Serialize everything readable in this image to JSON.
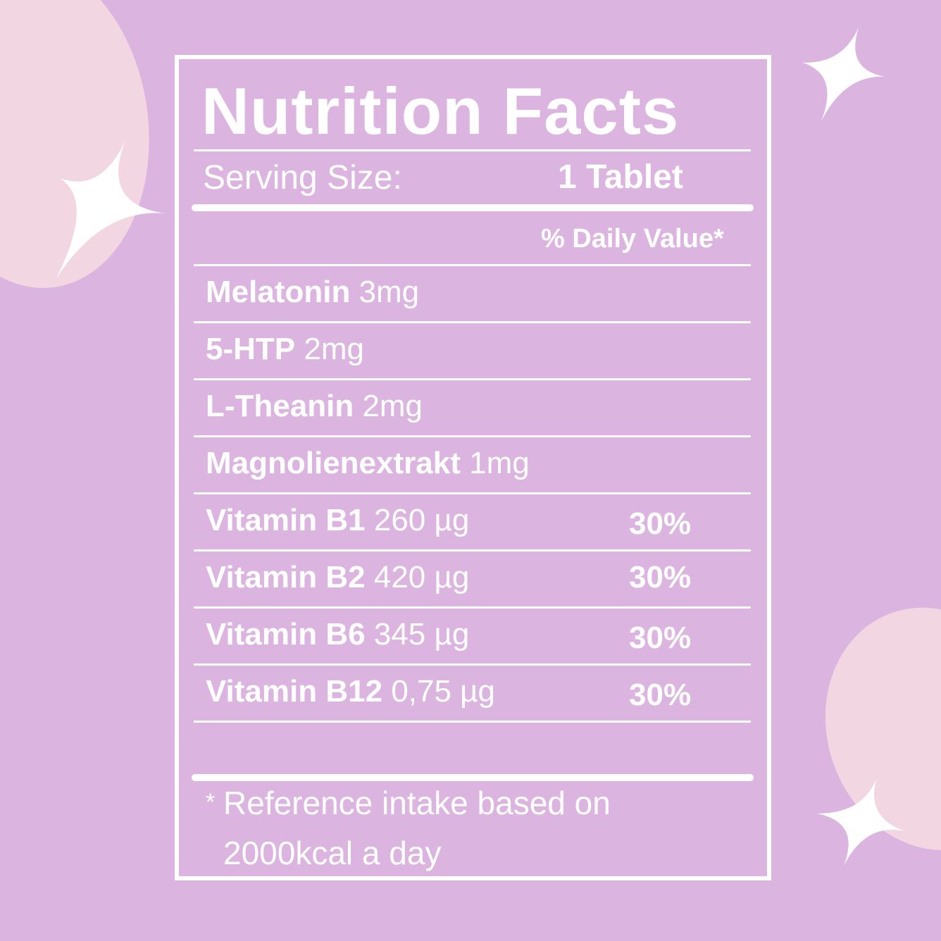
{
  "label": {
    "title": "Nutrition Facts",
    "serving_label": "Serving Size:",
    "serving_value": "1 Tablet",
    "daily_value_header": "% Daily Value*",
    "nutrients": [
      {
        "name": "Melatonin",
        "amount": "3mg",
        "dv": ""
      },
      {
        "name": "5-HTP",
        "amount": "2mg",
        "dv": ""
      },
      {
        "name": "L-Theanin",
        "amount": "2mg",
        "dv": ""
      },
      {
        "name": "Magnolienextrakt",
        "amount": "1mg",
        "dv": ""
      },
      {
        "name": "Vitamin B1",
        "amount": "260 µg",
        "dv": "30%"
      },
      {
        "name": "Vitamin B2",
        "amount": "420 µg",
        "dv": "30%"
      },
      {
        "name": "Vitamin B6",
        "amount": "345 µg",
        "dv": "30%"
      },
      {
        "name": "Vitamin B12",
        "amount": "0,75 µg",
        "dv": "30%"
      }
    ],
    "footnote_line1": "Reference intake based on",
    "footnote_line2": "2000kcal a day",
    "footnote_mark": "*"
  },
  "colors": {
    "background": "#dbb5e0",
    "blob": "#f2d6e2",
    "text": "#ffffff"
  }
}
